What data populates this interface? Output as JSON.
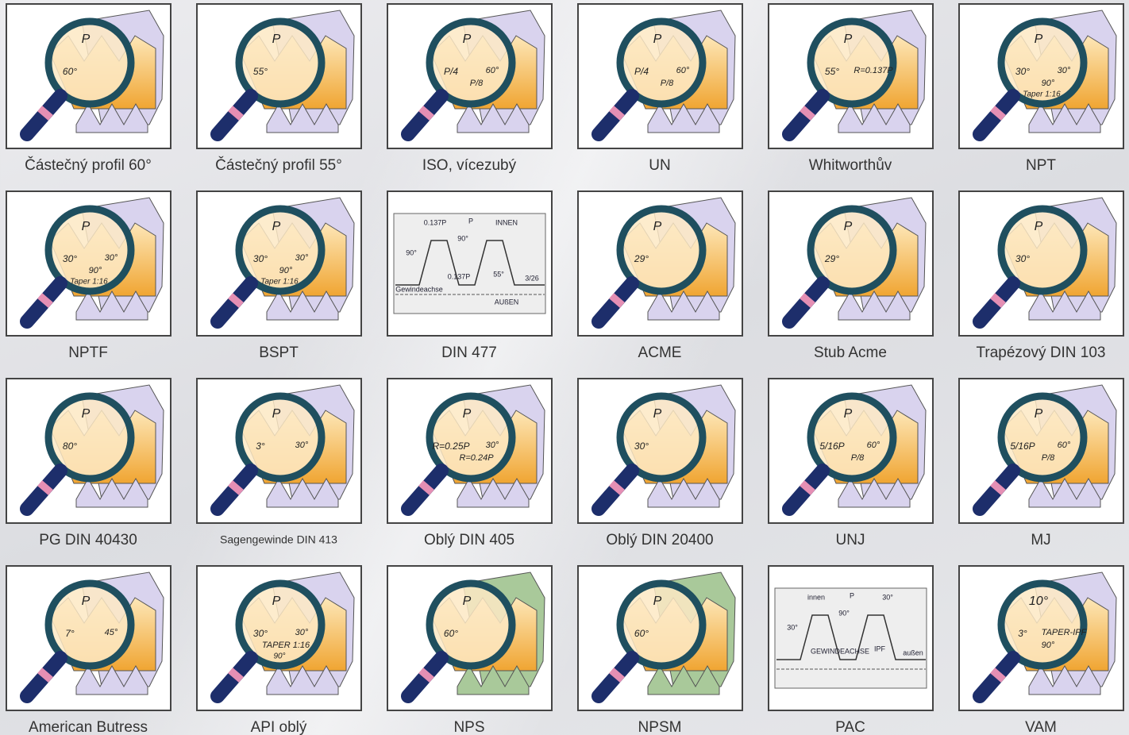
{
  "items": [
    {
      "label": "Částečný profil 60°",
      "kind": "magnifier",
      "texts": [
        "P",
        "60°"
      ]
    },
    {
      "label": "Částečný profil 55°",
      "kind": "magnifier",
      "texts": [
        "P",
        "55°"
      ]
    },
    {
      "label": "ISO, vícezubý",
      "kind": "magnifier",
      "texts": [
        "P",
        "P/4",
        "60°",
        "P/8"
      ]
    },
    {
      "label": "UN",
      "kind": "magnifier",
      "texts": [
        "P",
        "P/4",
        "60°",
        "P/8"
      ]
    },
    {
      "label": "Whitworthův",
      "kind": "magnifier",
      "texts": [
        "P",
        "55°",
        "R=0.137P"
      ]
    },
    {
      "label": "NPT",
      "kind": "magnifier",
      "texts": [
        "P",
        "30°",
        "30°",
        "90°",
        "Taper 1:16"
      ]
    },
    {
      "label": "NPTF",
      "kind": "magnifier",
      "texts": [
        "P",
        "30°",
        "30°",
        "90°",
        "Taper 1:16"
      ]
    },
    {
      "label": "BSPT",
      "kind": "magnifier",
      "texts": [
        "P",
        "30°",
        "30°",
        "90°",
        "Taper 1:16"
      ]
    },
    {
      "label": "DIN 477",
      "kind": "diagram",
      "texts": [
        "0.137P",
        "P",
        "INNEN",
        "90°",
        "90°",
        "0.137P",
        "55°",
        "3/26",
        "Gewindeachse",
        "AUßEN"
      ]
    },
    {
      "label": "ACME",
      "kind": "magnifier",
      "texts": [
        "P",
        "29°"
      ]
    },
    {
      "label": "Stub Acme",
      "kind": "magnifier",
      "texts": [
        "P",
        "29°"
      ]
    },
    {
      "label": "Trapézový DIN 103",
      "kind": "magnifier",
      "texts": [
        "P",
        "30°"
      ]
    },
    {
      "label": "PG DIN 40430",
      "kind": "magnifier",
      "texts": [
        "P",
        "80°"
      ]
    },
    {
      "label": "Sagengewinde DIN 413",
      "kind": "magnifier",
      "texts": [
        "P",
        "3°",
        "30°"
      ]
    },
    {
      "label": "Oblý DIN 405",
      "kind": "magnifier",
      "texts": [
        "P",
        "R=0.25P",
        "30°",
        "R=0.24P"
      ]
    },
    {
      "label": "Oblý DIN 20400",
      "kind": "magnifier",
      "texts": [
        "P",
        "30°"
      ]
    },
    {
      "label": "UNJ",
      "kind": "magnifier",
      "texts": [
        "P",
        "5/16P",
        "60°",
        "P/8"
      ]
    },
    {
      "label": "MJ",
      "kind": "magnifier",
      "texts": [
        "P",
        "5/16P",
        "60°",
        "P/8"
      ]
    },
    {
      "label": "American Butress",
      "kind": "magnifier",
      "texts": [
        "P",
        "7°",
        "45°"
      ]
    },
    {
      "label": "API oblý",
      "kind": "magnifier",
      "texts": [
        "P",
        "30°",
        "30°",
        "TAPER 1:16",
        "90°"
      ]
    },
    {
      "label": "NPS",
      "kind": "magnifier",
      "strip_color": "#a9c99a",
      "texts": [
        "P",
        "60°"
      ]
    },
    {
      "label": "NPSM",
      "kind": "magnifier",
      "strip_color": "#a9c99a",
      "texts": [
        "P",
        "60°"
      ]
    },
    {
      "label": "PAC",
      "kind": "diagram",
      "texts": [
        "innen",
        "P",
        "30°",
        "30°",
        "90°",
        "GEWINDEACHSE",
        "IPF",
        "außen"
      ]
    },
    {
      "label": "VAM",
      "kind": "magnifier",
      "texts": [
        "10°",
        "3°",
        "TAPER-IPF",
        "90°"
      ]
    }
  ]
}
